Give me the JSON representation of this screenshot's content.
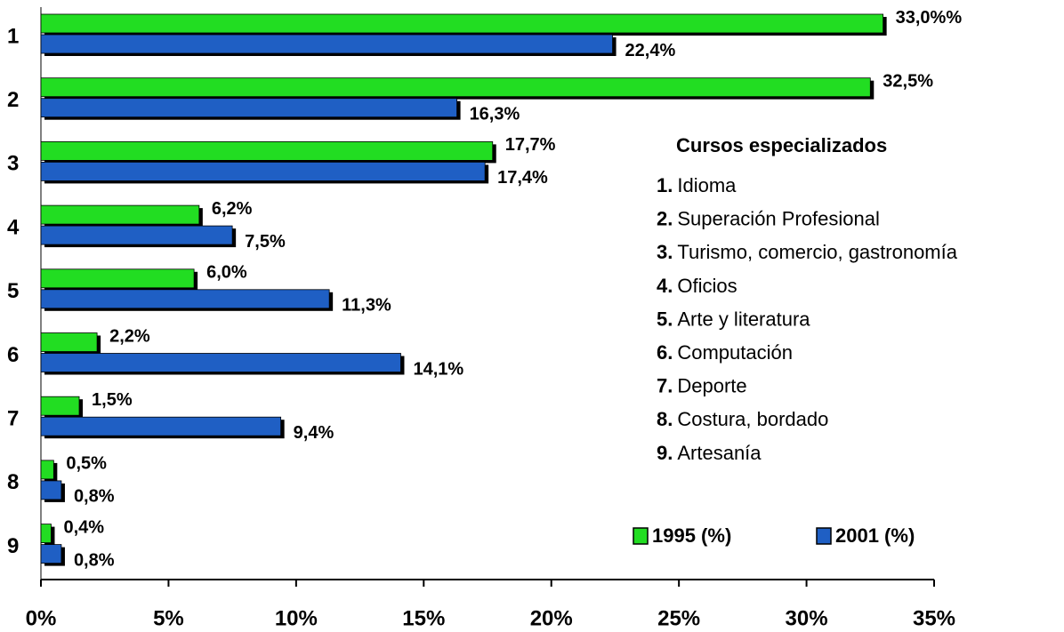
{
  "chart_data": {
    "type": "bar",
    "orientation": "horizontal",
    "categories": [
      "1",
      "2",
      "3",
      "4",
      "5",
      "6",
      "7",
      "8",
      "9"
    ],
    "series": [
      {
        "name": "1995 (%)",
        "color": "#22dd22",
        "values": [
          33.0,
          32.5,
          17.7,
          6.2,
          6.0,
          2.2,
          1.5,
          0.5,
          0.4
        ],
        "value_labels": [
          "33,0%%",
          "32,5%",
          "17,7%",
          "6,2%",
          "6,0%",
          "2,2%",
          "1,5%",
          "0,5%",
          "0,4%"
        ]
      },
      {
        "name": "2001 (%)",
        "color": "#1f5fc4",
        "values": [
          22.4,
          16.3,
          17.4,
          7.5,
          11.3,
          14.1,
          9.4,
          0.8,
          0.8
        ],
        "value_labels": [
          "22,4%",
          "16,3%",
          "17,4%",
          "7,5%",
          "11,3%",
          "14,1%",
          "9,4%",
          "0,8%",
          "0,8%"
        ]
      }
    ],
    "xlim": [
      0,
      35
    ],
    "xticks": [
      {
        "value": 0,
        "label": "0%"
      },
      {
        "value": 5,
        "label": "5%"
      },
      {
        "value": 10,
        "label": "10%"
      },
      {
        "value": 15,
        "label": "15%"
      },
      {
        "value": 20,
        "label": "20%"
      },
      {
        "value": 25,
        "label": "25%"
      },
      {
        "value": 30,
        "label": "30%"
      },
      {
        "value": 35,
        "label": "35%"
      }
    ],
    "grid": false,
    "legend": "bottom-right",
    "course_list": {
      "title": "Cursos especializados",
      "items": [
        {
          "number": "1.",
          "label": "Idioma"
        },
        {
          "number": "2.",
          "label": "Superación Profesional"
        },
        {
          "number": "3.",
          "label": "Turismo, comercio, gastronomía"
        },
        {
          "number": "4.",
          "label": "Oficios"
        },
        {
          "number": "5.",
          "label": "Arte y literatura"
        },
        {
          "number": "6.",
          "label": "Computación"
        },
        {
          "number": "7.",
          "label": "Deporte"
        },
        {
          "number": "8.",
          "label": "Costura, bordado"
        },
        {
          "number": "9.",
          "label": "Artesanía"
        }
      ]
    }
  }
}
